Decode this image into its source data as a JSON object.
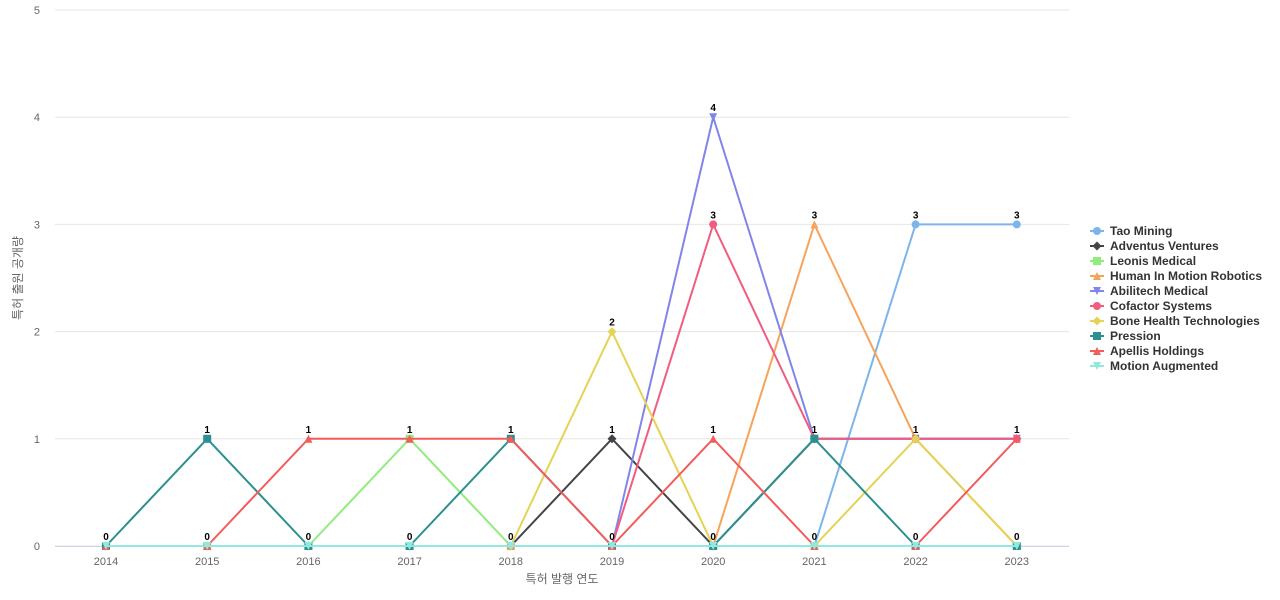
{
  "chart_data": {
    "type": "line",
    "title": "",
    "xlabel": "특허 발행 연도",
    "ylabel": "특허 출원 공개량",
    "x": [
      2014,
      2015,
      2016,
      2017,
      2018,
      2019,
      2020,
      2021,
      2022,
      2023
    ],
    "ylim": [
      0,
      5
    ],
    "yticks": [
      0,
      1,
      2,
      3,
      4,
      5
    ],
    "grid": true,
    "legend": "right",
    "series": [
      {
        "name": "Tao Mining",
        "color": "#7cb5ec",
        "marker": "circle",
        "values": [
          0,
          0,
          0,
          0,
          0,
          0,
          0,
          0,
          3,
          3
        ]
      },
      {
        "name": "Adventus Ventures",
        "color": "#434348",
        "marker": "diamond",
        "values": [
          0,
          0,
          0,
          0,
          0,
          1,
          0,
          1,
          1,
          1
        ]
      },
      {
        "name": "Leonis Medical",
        "color": "#90ed7d",
        "marker": "square",
        "values": [
          0,
          0,
          0,
          1,
          0,
          0,
          0,
          0,
          0,
          0
        ]
      },
      {
        "name": "Human In Motion Robotics",
        "color": "#f7a35c",
        "marker": "triangle",
        "values": [
          0,
          0,
          0,
          0,
          0,
          0,
          0,
          3,
          1,
          0
        ]
      },
      {
        "name": "Abilitech Medical",
        "color": "#8085e9",
        "marker": "triangle-down",
        "values": [
          0,
          0,
          0,
          0,
          0,
          0,
          4,
          1,
          1,
          1
        ]
      },
      {
        "name": "Cofactor Systems",
        "color": "#f15c80",
        "marker": "circle",
        "values": [
          0,
          0,
          0,
          0,
          0,
          0,
          3,
          1,
          1,
          1
        ]
      },
      {
        "name": "Bone Health Technologies",
        "color": "#e4d354",
        "marker": "diamond",
        "values": [
          0,
          0,
          0,
          0,
          0,
          2,
          0,
          0,
          1,
          0
        ]
      },
      {
        "name": "Pression",
        "color": "#2b908f",
        "marker": "square",
        "values": [
          0,
          1,
          0,
          0,
          1,
          0,
          0,
          1,
          0,
          0
        ]
      },
      {
        "name": "Apellis Holdings",
        "color": "#f45b5b",
        "marker": "triangle",
        "values": [
          0,
          0,
          1,
          1,
          1,
          0,
          1,
          0,
          0,
          1
        ]
      },
      {
        "name": "Motion Augmented",
        "color": "#91e8e1",
        "marker": "triangle-down",
        "values": [
          0,
          0,
          0,
          0,
          0,
          0,
          0,
          0,
          0,
          0
        ]
      }
    ],
    "data_labels": [
      {
        "x": 2014,
        "label": "0",
        "value": 0
      },
      {
        "x": 2015,
        "label": "1",
        "value": 1
      },
      {
        "x": 2015,
        "label": "0",
        "value": 0
      },
      {
        "x": 2016,
        "label": "1",
        "value": 1
      },
      {
        "x": 2016,
        "label": "0",
        "value": 0
      },
      {
        "x": 2017,
        "label": "1",
        "value": 1
      },
      {
        "x": 2017,
        "label": "0",
        "value": 0
      },
      {
        "x": 2018,
        "label": "1",
        "value": 1
      },
      {
        "x": 2018,
        "label": "0",
        "value": 0
      },
      {
        "x": 2019,
        "label": "2",
        "value": 2
      },
      {
        "x": 2019,
        "label": "1",
        "value": 1
      },
      {
        "x": 2019,
        "label": "0",
        "value": 0
      },
      {
        "x": 2020,
        "label": "4",
        "value": 4
      },
      {
        "x": 2020,
        "label": "3",
        "value": 3
      },
      {
        "x": 2020,
        "label": "1",
        "value": 1
      },
      {
        "x": 2020,
        "label": "0",
        "value": 0
      },
      {
        "x": 2021,
        "label": "3",
        "value": 3
      },
      {
        "x": 2021,
        "label": "1",
        "value": 1
      },
      {
        "x": 2021,
        "label": "0",
        "value": 0
      },
      {
        "x": 2022,
        "label": "3",
        "value": 3
      },
      {
        "x": 2022,
        "label": "1",
        "value": 1
      },
      {
        "x": 2022,
        "label": "0",
        "value": 0
      },
      {
        "x": 2023,
        "label": "3",
        "value": 3
      },
      {
        "x": 2023,
        "label": "1",
        "value": 1
      },
      {
        "x": 2023,
        "label": "0",
        "value": 0
      }
    ]
  }
}
